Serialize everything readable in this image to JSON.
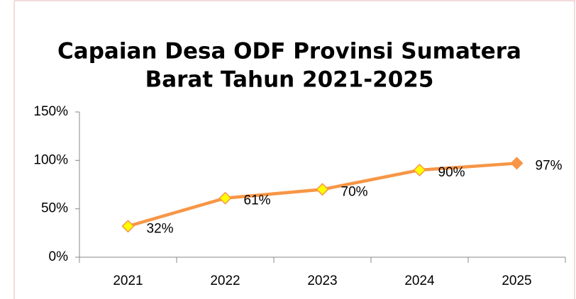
{
  "chart_data": {
    "type": "line",
    "title": [
      "Capaian Desa ODF Provinsi Sumatera",
      "Barat Tahun 2021-2025"
    ],
    "categories": [
      "2021",
      "2022",
      "2023",
      "2024",
      "2025"
    ],
    "values": [
      32,
      61,
      70,
      90,
      97
    ],
    "value_labels": [
      "32%",
      "61%",
      "70%",
      "90%",
      "97%"
    ],
    "color": "#f79646",
    "marker_fill": [
      "#ffff00",
      "#ffff00",
      "#ffff00",
      "#ffff00",
      "#f79646"
    ],
    "ylim": [
      0,
      150
    ],
    "yticks": [
      {
        "value": 0,
        "label": "0%"
      },
      {
        "value": 50,
        "label": "50%"
      },
      {
        "value": 100,
        "label": "100%"
      },
      {
        "value": 150,
        "label": "150%"
      }
    ],
    "grid": false
  }
}
